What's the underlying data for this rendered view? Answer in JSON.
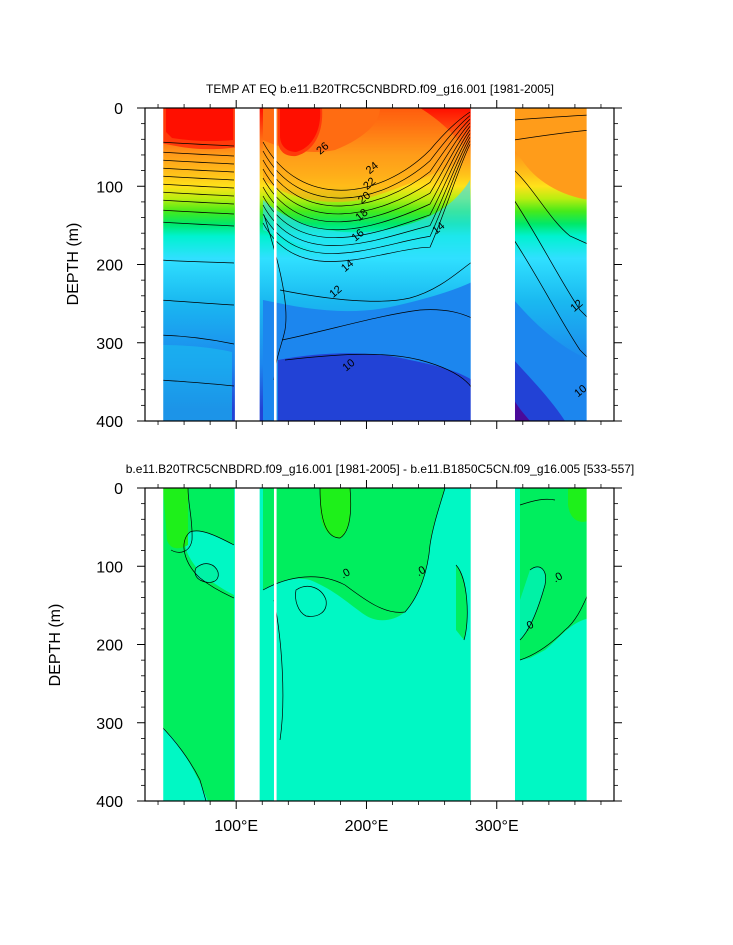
{
  "chart_data": [
    {
      "type": "contour",
      "title": "TEMP AT EQ b.e11.B20TRC5CNBDRD.f09_g16.001 [1981-2005]",
      "ylabel": "DEPTH (m)",
      "xlabel": "",
      "xlim": [
        30,
        390
      ],
      "ylim": [
        400,
        0
      ],
      "yticks": [
        0,
        100,
        200,
        300,
        400
      ],
      "ytick_labels": [
        "0",
        "100",
        "200",
        "300",
        "400"
      ],
      "xticks": [
        100,
        200,
        300
      ],
      "xtick_labels": [
        "",
        "",
        ""
      ],
      "land_gaps": [
        [
          99,
          118
        ],
        [
          129,
          131
        ],
        [
          280,
          314
        ]
      ],
      "data_extent": [
        44,
        369
      ],
      "contour_labels": [
        {
          "text": "26",
          "lon": 168,
          "depth": 55
        },
        {
          "text": "24",
          "lon": 206,
          "depth": 80
        },
        {
          "text": "22",
          "lon": 204,
          "depth": 100
        },
        {
          "text": "20",
          "lon": 200,
          "depth": 118
        },
        {
          "text": "18",
          "lon": 198,
          "depth": 140
        },
        {
          "text": "16",
          "lon": 195,
          "depth": 166
        },
        {
          "text": "14",
          "lon": 257,
          "depth": 157
        },
        {
          "text": "14",
          "lon": 187,
          "depth": 205
        },
        {
          "text": "12",
          "lon": 178,
          "depth": 238
        },
        {
          "text": "12",
          "lon": 363,
          "depth": 256
        },
        {
          "text": "10",
          "lon": 188,
          "depth": 332
        },
        {
          "text": "10",
          "lon": 366,
          "depth": 365
        }
      ],
      "fill_colors": [
        "#4a0a9a",
        "#2242d6",
        "#1c86ee",
        "#1ab8f0",
        "#30e0ff",
        "#00f2d0",
        "#00e868",
        "#46ea1a",
        "#b8ee10",
        "#ffe21a",
        "#ffc01a",
        "#ff9c1a",
        "#ff6c12",
        "#ff3a0a",
        "#ff0f00"
      ]
    },
    {
      "type": "contour",
      "title": "b.e11.B20TRC5CNBDRD.f09_g16.001 [1981-2005] - b.e11.B1850C5CN.f09_g16.005 [533-557]",
      "ylabel": "DEPTH (m)",
      "xlabel": "",
      "xlim": [
        30,
        390
      ],
      "ylim": [
        400,
        0
      ],
      "yticks": [
        0,
        100,
        200,
        300,
        400
      ],
      "ytick_labels": [
        "0",
        "100",
        "200",
        "300",
        "400"
      ],
      "xticks": [
        100,
        200,
        300
      ],
      "xtick_labels": [
        "100°E",
        "200°E",
        "300°E"
      ],
      "land_gaps": [
        [
          99,
          118
        ],
        [
          129,
          131
        ],
        [
          280,
          314
        ]
      ],
      "data_extent": [
        44,
        369
      ],
      "contour_labels": [
        {
          "text": ".0",
          "lon": 185,
          "depth": 113
        },
        {
          "text": ".0",
          "lon": 243,
          "depth": 110
        },
        {
          "text": ".0",
          "lon": 348,
          "depth": 118
        },
        {
          "text": ".0",
          "lon": 326,
          "depth": 180
        }
      ],
      "fill_colors": [
        "#00f8c4",
        "#00f2a6",
        "#00ee5e",
        "#1ef01a"
      ]
    }
  ]
}
